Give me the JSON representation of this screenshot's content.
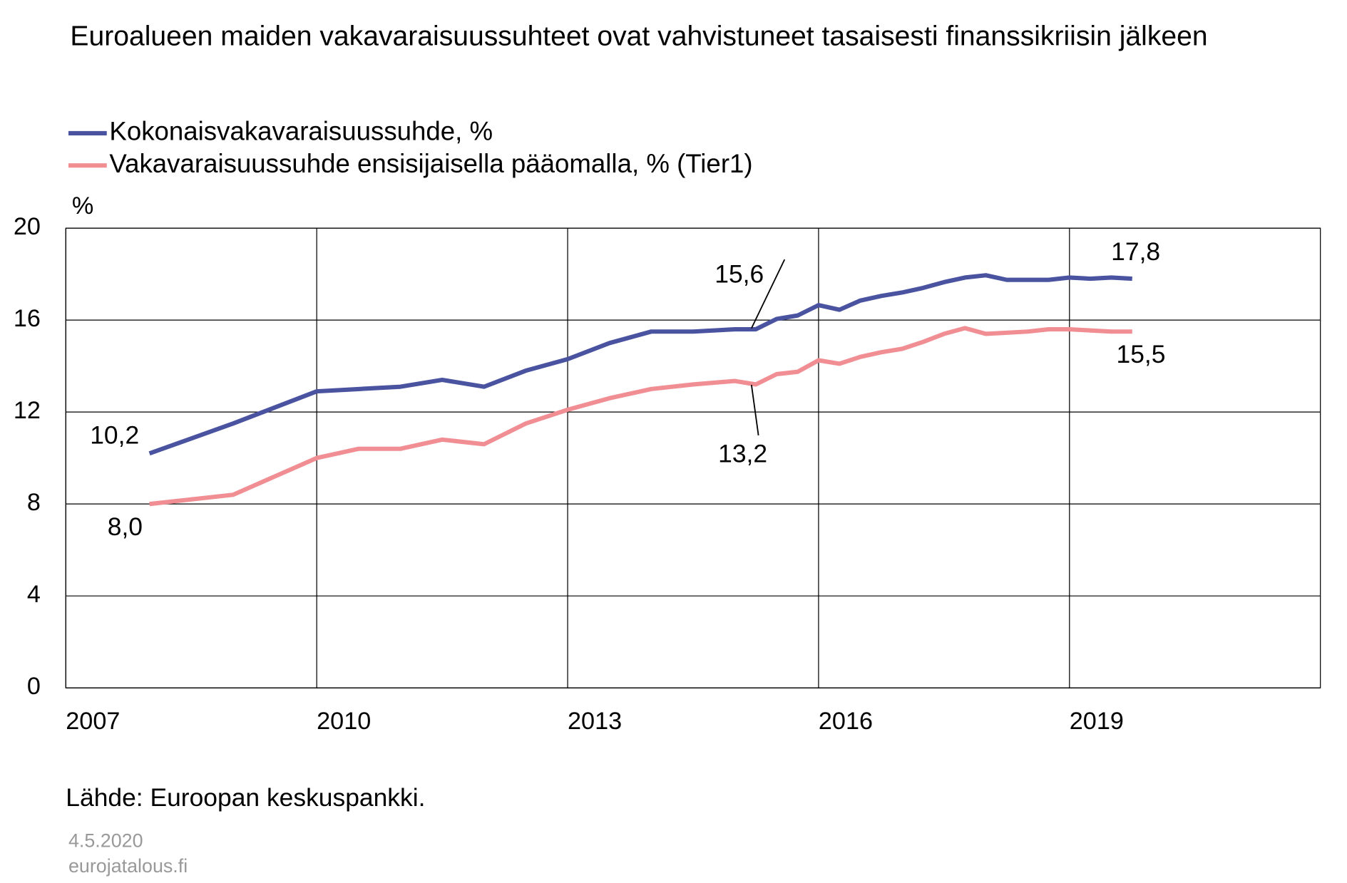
{
  "chart_data": {
    "type": "line",
    "title": "Euroalueen maiden vakavaraisuussuhteet ovat vahvistuneet tasaisesti finanssikriisin jälkeen",
    "y_label": "%",
    "source": "Lähde: Euroopan keskuspankki.",
    "date": "4.5.2020",
    "site": "eurojatalous.fi",
    "x": [
      2008,
      2009,
      2010,
      2010.5,
      2011,
      2011.5,
      2012,
      2012.5,
      2013,
      2013.5,
      2014,
      2014.5,
      2015,
      2015.25,
      2015.5,
      2015.75,
      2016,
      2016.25,
      2016.5,
      2016.75,
      2017,
      2017.25,
      2017.5,
      2017.75,
      2018,
      2018.25,
      2018.5,
      2018.75,
      2019,
      2019.25,
      2019.5,
      2019.75
    ],
    "xlim": [
      2007,
      2022
    ],
    "xticks": [
      2007,
      2010,
      2013,
      2016,
      2019
    ],
    "ylim": [
      0,
      20
    ],
    "yticks": [
      0,
      4,
      8,
      12,
      16,
      20
    ],
    "grid": true,
    "series": [
      {
        "name": "Kokonaisvakavaraisuussuhde, %",
        "color": "#4a53a0",
        "values": [
          10.2,
          11.5,
          12.9,
          13.0,
          13.1,
          13.4,
          13.1,
          13.8,
          14.3,
          15.0,
          15.5,
          15.5,
          15.6,
          15.6,
          16.05,
          16.2,
          16.65,
          16.45,
          16.85,
          17.05,
          17.2,
          17.4,
          17.65,
          17.85,
          17.95,
          17.75,
          17.75,
          17.75,
          17.85,
          17.8,
          17.85,
          17.8
        ]
      },
      {
        "name": "Vakavaraisuussuhde ensisijaisella pääomalla, % (Tier1)",
        "color": "#f08e93",
        "values": [
          8.0,
          8.4,
          10.0,
          10.4,
          10.4,
          10.8,
          10.6,
          11.5,
          12.1,
          12.6,
          13.0,
          13.2,
          13.35,
          13.2,
          13.65,
          13.75,
          14.25,
          14.1,
          14.4,
          14.6,
          14.75,
          15.05,
          15.4,
          15.65,
          15.4,
          15.45,
          15.5,
          15.6,
          15.6,
          15.55,
          15.5,
          15.5
        ]
      }
    ],
    "annotations": [
      "10,2",
      "15,6",
      "17,8",
      "8,0",
      "13,2",
      "15,5"
    ]
  }
}
